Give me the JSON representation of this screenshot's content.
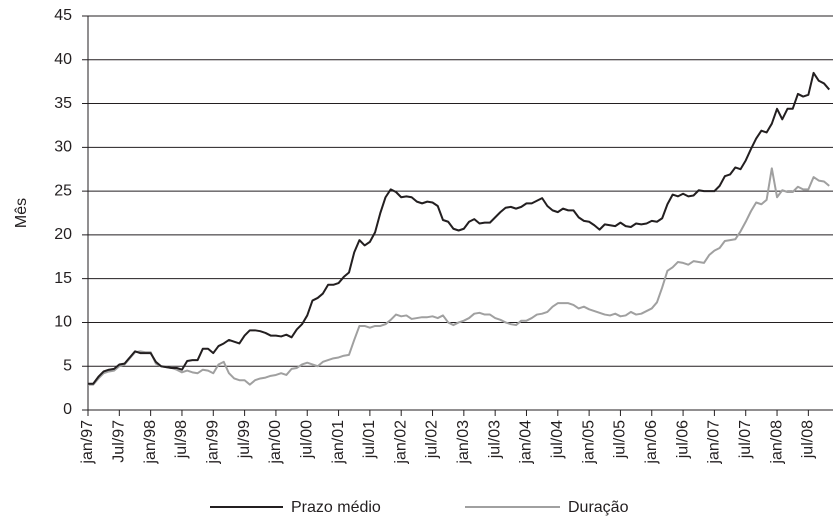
{
  "chart_data": {
    "type": "line",
    "y_label": "Mês",
    "categories": [
      "jan/97",
      null,
      null,
      null,
      null,
      null,
      "Jul/97",
      null,
      null,
      null,
      null,
      null,
      "jan/98",
      null,
      null,
      null,
      null,
      null,
      "jul/98",
      null,
      null,
      null,
      null,
      null,
      "jan/99",
      null,
      null,
      null,
      null,
      null,
      "jul/99",
      null,
      null,
      null,
      null,
      null,
      "jan/00",
      null,
      null,
      null,
      null,
      null,
      "jul/00",
      null,
      null,
      null,
      null,
      null,
      "jan/01",
      null,
      null,
      null,
      null,
      null,
      "jul/01",
      null,
      null,
      null,
      null,
      null,
      "jan/02",
      null,
      null,
      null,
      null,
      null,
      "jul/02",
      null,
      null,
      null,
      null,
      null,
      "jan/03",
      null,
      null,
      null,
      null,
      null,
      "jul/03",
      null,
      null,
      null,
      null,
      null,
      "jan/04",
      null,
      null,
      null,
      null,
      null,
      "jul/04",
      null,
      null,
      null,
      null,
      null,
      "jan/05",
      null,
      null,
      null,
      null,
      null,
      "jul/05",
      null,
      null,
      null,
      null,
      null,
      "jan/06",
      null,
      null,
      null,
      null,
      null,
      "jul/06",
      null,
      null,
      null,
      null,
      null,
      "jan/07",
      null,
      null,
      null,
      null,
      null,
      "jul/07",
      null,
      null,
      null,
      null,
      null,
      "jan/08",
      null,
      null,
      null,
      null,
      null,
      "jul/08",
      null,
      null,
      null,
      null
    ],
    "series": [
      {
        "name": "Prazo médio",
        "color": "#231f20",
        "values": [
          3.0,
          3.0,
          3.8,
          4.4,
          4.6,
          4.7,
          5.2,
          5.3,
          6.0,
          6.7,
          6.5,
          6.5,
          6.5,
          5.5,
          5.0,
          4.9,
          4.8,
          4.8,
          4.6,
          5.6,
          5.7,
          5.7,
          7.0,
          7.0,
          6.5,
          7.3,
          7.6,
          8.0,
          7.8,
          7.6,
          8.5,
          9.1,
          9.1,
          9.0,
          8.8,
          8.5,
          8.5,
          8.4,
          8.6,
          8.3,
          9.2,
          9.8,
          10.8,
          12.5,
          12.8,
          13.3,
          14.3,
          14.3,
          14.5,
          15.2,
          15.7,
          18.0,
          19.4,
          18.8,
          19.2,
          20.3,
          22.5,
          24.3,
          25.2,
          24.9,
          24.3,
          24.4,
          24.3,
          23.8,
          23.6,
          23.8,
          23.7,
          23.3,
          21.7,
          21.5,
          20.7,
          20.5,
          20.7,
          21.5,
          21.8,
          21.3,
          21.4,
          21.4,
          22.0,
          22.6,
          23.1,
          23.2,
          23.0,
          23.2,
          23.6,
          23.6,
          23.9,
          24.2,
          23.3,
          22.8,
          22.6,
          23.0,
          22.8,
          22.8,
          22.0,
          21.6,
          21.5,
          21.1,
          20.6,
          21.2,
          21.1,
          21.0,
          21.4,
          21.0,
          20.9,
          21.3,
          21.2,
          21.3,
          21.6,
          21.5,
          21.9,
          23.5,
          24.6,
          24.4,
          24.7,
          24.4,
          24.5,
          25.1,
          25.0,
          25.0,
          25.0,
          25.6,
          26.7,
          26.9,
          27.7,
          27.5,
          28.5,
          29.8,
          31.0,
          31.9,
          31.7,
          32.7,
          34.4,
          33.2,
          34.4,
          34.4,
          36.1,
          35.8,
          36.0,
          38.5,
          37.6,
          37.3,
          36.6
        ]
      },
      {
        "name": "Duração",
        "color": "#a0a0a0",
        "values": [
          2.9,
          2.9,
          3.6,
          4.2,
          4.4,
          4.5,
          5.0,
          5.2,
          5.9,
          6.6,
          6.7,
          6.6,
          6.6,
          5.3,
          5.0,
          4.9,
          4.8,
          4.6,
          4.3,
          4.5,
          4.3,
          4.2,
          4.6,
          4.5,
          4.2,
          5.2,
          5.5,
          4.2,
          3.6,
          3.4,
          3.4,
          2.9,
          3.4,
          3.6,
          3.7,
          3.9,
          4.0,
          4.2,
          4.0,
          4.7,
          4.8,
          5.2,
          5.4,
          5.2,
          5.0,
          5.5,
          5.7,
          5.9,
          6.0,
          6.2,
          6.3,
          8.0,
          9.6,
          9.6,
          9.4,
          9.6,
          9.6,
          9.8,
          10.3,
          10.9,
          10.7,
          10.8,
          10.4,
          10.5,
          10.6,
          10.6,
          10.7,
          10.5,
          10.8,
          10.0,
          9.7,
          10.0,
          10.2,
          10.5,
          11.0,
          11.1,
          10.9,
          10.9,
          10.5,
          10.3,
          10.0,
          9.8,
          9.7,
          10.2,
          10.2,
          10.5,
          10.9,
          11.0,
          11.2,
          11.8,
          12.2,
          12.2,
          12.2,
          12.0,
          11.6,
          11.8,
          11.5,
          11.3,
          11.1,
          10.9,
          10.8,
          11.0,
          10.7,
          10.8,
          11.2,
          10.9,
          11.0,
          11.3,
          11.6,
          12.3,
          14.0,
          15.9,
          16.3,
          16.9,
          16.8,
          16.6,
          17.0,
          16.9,
          16.8,
          17.7,
          18.2,
          18.5,
          19.3,
          19.4,
          19.5,
          20.4,
          21.5,
          22.7,
          23.7,
          23.5,
          24.0,
          27.6,
          24.3,
          25.1,
          24.9,
          24.9,
          25.5,
          25.2,
          25.2,
          26.6,
          26.2,
          26.1,
          25.6
        ]
      }
    ],
    "ylim": [
      0,
      45
    ],
    "yticks": [
      0,
      5,
      10,
      15,
      20,
      25,
      30,
      35,
      40,
      45
    ],
    "grid": true,
    "legend": "bottom"
  }
}
